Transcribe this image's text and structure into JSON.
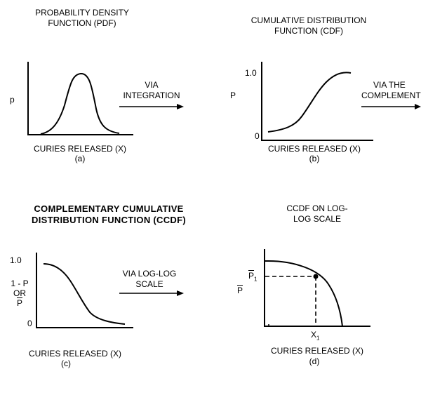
{
  "panels": {
    "a": {
      "title_line1": "PROBABILITY DENSITY",
      "title_line2": "FUNCTION (PDF)",
      "y_label": "p",
      "x_label": "CURIES RELEASED (X)",
      "caption": "(a)"
    },
    "b": {
      "title_line1": "CUMULATIVE DISTRIBUTION",
      "title_line2": "FUNCTION (CDF)",
      "y_label": "P",
      "y_tick_top": "1.0",
      "y_tick_bottom": "0",
      "x_label": "CURIES RELEASED (X)",
      "caption": "(b)"
    },
    "c": {
      "title_line1": "COMPLEMENTARY CUMULATIVE",
      "title_line2": "DISTRIBUTION FUNCTION (CCDF)",
      "y_label_line1": "1 - P",
      "y_label_line2": "OR",
      "y_label_line3": "P",
      "y_tick_top": "1.0",
      "y_tick_bottom": "0",
      "x_label": "CURIES RELEASED (X)",
      "caption": "(c)"
    },
    "d": {
      "title_line1": "CCDF ON LOG-",
      "title_line2": "LOG SCALE",
      "y_label": "P",
      "point_y_label": "P",
      "point_y_sub": "1",
      "point_x_label": "X",
      "point_x_sub": "1",
      "x_label": "CURIES RELEASED (X)",
      "caption": "(d)"
    }
  },
  "arrows": {
    "a_to_b_line1": "VIA",
    "a_to_b_line2": "INTEGRATION",
    "b_to_c_line1": "VIA THE",
    "b_to_c_line2": "COMPLEMENT",
    "c_to_d_line1": "VIA LOG-LOG",
    "c_to_d_line2": "SCALE"
  }
}
